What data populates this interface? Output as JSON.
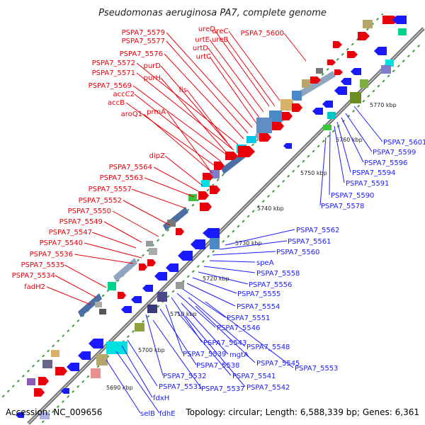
{
  "title": "Pseudomonas aeruginosa PA7, complete genome",
  "footer": {
    "accession": "Accession: NC_009656",
    "summary": "Topology: circular; Length: 6,588,339 bp; Genes: 6,361"
  },
  "colors": {
    "forward_label": "#e8000b",
    "reverse_label": "#1a1aff",
    "backbone": "#808080",
    "tick": "#2e7d32"
  },
  "ticks": [
    "5690 kbp",
    "5700 kbp",
    "5710 kbp",
    "5720 kbp",
    "5730 kbp",
    "5740 kbp",
    "5750 kbp",
    "5760 kbp",
    "5770 kbp"
  ],
  "forward_labels": [
    "ureD",
    "ureC",
    "urtE",
    "ureB",
    "urtD",
    "urtC",
    "PSPA7_5579",
    "PSPA7_5577",
    "PSPA7_5576",
    "PSPA7_5572",
    "PSPA7_5571",
    "PSPA7_5569",
    "purD",
    "purH",
    "fis",
    "accC2",
    "accB",
    "aroQ1",
    "prmA",
    "PSPA7_5600",
    "dipZ",
    "PSPA7_5564",
    "PSPA7_5563",
    "PSPA7_5557",
    "PSPA7_5552",
    "PSPA7_5550",
    "PSPA7_5549",
    "PSPA7_5547",
    "PSPA7_5540",
    "PSPA7_5536",
    "PSPA7_5535",
    "PSPA7_5534",
    "fadH2"
  ],
  "reverse_labels": [
    "PSPA7_5601",
    "PSPA7_5599",
    "PSPA7_5596",
    "PSPA7_5594",
    "PSPA7_5591",
    "PSPA7_5590",
    "PSPA7_5578",
    "PSPA7_5562",
    "PSPA7_5561",
    "PSPA7_5560",
    "speA",
    "PSPA7_5558",
    "PSPA7_5556",
    "PSPA7_5555",
    "PSPA7_5554",
    "PSPA7_5551",
    "PSPA7_5546",
    "PSPA7_5543",
    "PSPA7_5548",
    "mgtA",
    "PSPA7_5539",
    "PSPA7_5538",
    "PSPA7_5545",
    "PSPA7_5553",
    "PSPA7_5541",
    "PSPA7_5532",
    "PSPA7_5537",
    "PSPA7_5542",
    "PSPA7_5531",
    "fdxH",
    "fdhE",
    "selB"
  ]
}
